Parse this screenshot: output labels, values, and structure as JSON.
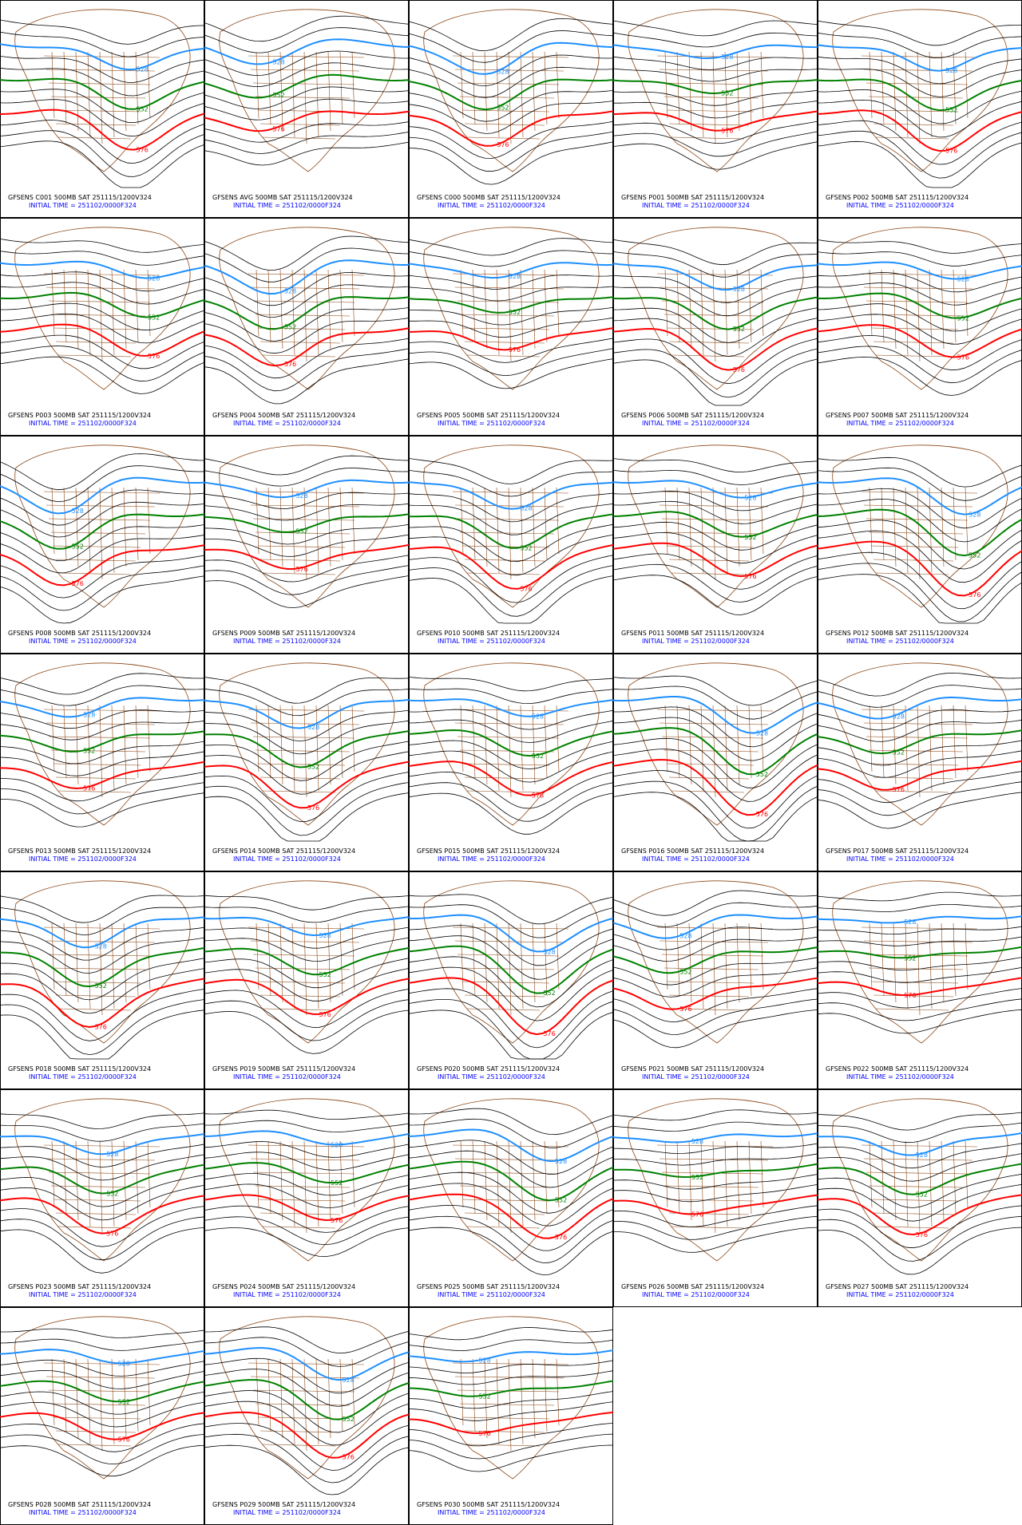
{
  "contours": [
    {
      "label": "528",
      "color": "#1e8fff"
    },
    {
      "label": "552",
      "color": "#008000"
    },
    {
      "label": "576",
      "color": "#ff0000"
    }
  ],
  "panels": [
    {
      "title": "GFSENS C001 500MB SAT 251115/1200V324",
      "init": "INITIAL TIME = 251102/0000F324"
    },
    {
      "title": "GFSENS AVG 500MB SAT 251115/1200V324",
      "init": "INITIAL TIME = 251102/0000F324"
    },
    {
      "title": "GFSENS C000 500MB SAT 251115/1200V324",
      "init": "INITIAL TIME = 251102/0000F324"
    },
    {
      "title": "GFSENS P001 500MB SAT 251115/1200V324",
      "init": "INITIAL TIME = 251102/0000F324"
    },
    {
      "title": "GFSENS P002 500MB SAT 251115/1200V324",
      "init": "INITIAL TIME = 251102/0000F324"
    },
    {
      "title": "GFSENS P003 500MB SAT 251115/1200V324",
      "init": "INITIAL TIME = 251102/0000F324"
    },
    {
      "title": "GFSENS P004 500MB SAT 251115/1200V324",
      "init": "INITIAL TIME = 251102/0000F324"
    },
    {
      "title": "GFSENS P005 500MB SAT 251115/1200V324",
      "init": "INITIAL TIME = 251102/0000F324"
    },
    {
      "title": "GFSENS P006 500MB SAT 251115/1200V324",
      "init": "INITIAL TIME = 251102/0000F324"
    },
    {
      "title": "GFSENS P007 500MB SAT 251115/1200V324",
      "init": "INITIAL TIME = 251102/0000F324"
    },
    {
      "title": "GFSENS P008 500MB SAT 251115/1200V324",
      "init": "INITIAL TIME = 251102/0000F324"
    },
    {
      "title": "GFSENS P009 500MB SAT 251115/1200V324",
      "init": "INITIAL TIME = 251102/0000F324"
    },
    {
      "title": "GFSENS P010 500MB SAT 251115/1200V324",
      "init": "INITIAL TIME = 251102/0000F324"
    },
    {
      "title": "GFSENS P011 500MB SAT 251115/1200V324",
      "init": "INITIAL TIME = 251102/0000F324"
    },
    {
      "title": "GFSENS P012 500MB SAT 251115/1200V324",
      "init": "INITIAL TIME = 251102/0000F324"
    },
    {
      "title": "GFSENS P013 500MB SAT 251115/1200V324",
      "init": "INITIAL TIME = 251102/0000F324"
    },
    {
      "title": "GFSENS P014 500MB SAT 251115/1200V324",
      "init": "INITIAL TIME = 251102/0000F324"
    },
    {
      "title": "GFSENS P015 500MB SAT 251115/1200V324",
      "init": "INITIAL TIME = 251102/0000F324"
    },
    {
      "title": "GFSENS P016 500MB SAT 251115/1200V324",
      "init": "INITIAL TIME = 251102/0000F324"
    },
    {
      "title": "GFSENS P017 500MB SAT 251115/1200V324",
      "init": "INITIAL TIME = 251102/0000F324"
    },
    {
      "title": "GFSENS P018 500MB SAT 251115/1200V324",
      "init": "INITIAL TIME = 251102/0000F324"
    },
    {
      "title": "GFSENS P019 500MB SAT 251115/1200V324",
      "init": "INITIAL TIME = 251102/0000F324"
    },
    {
      "title": "GFSENS P020 500MB SAT 251115/1200V324",
      "init": "INITIAL TIME = 251102/0000F324"
    },
    {
      "title": "GFSENS P021 500MB SAT 251115/1200V324",
      "init": "INITIAL TIME = 251102/0000F324"
    },
    {
      "title": "GFSENS P022 500MB SAT 251115/1200V324",
      "init": "INITIAL TIME = 251102/0000F324"
    },
    {
      "title": "GFSENS P023 500MB SAT 251115/1200V324",
      "init": "INITIAL TIME = 251102/0000F324"
    },
    {
      "title": "GFSENS P024 500MB SAT 251115/1200V324",
      "init": "INITIAL TIME = 251102/0000F324"
    },
    {
      "title": "GFSENS P025 500MB SAT 251115/1200V324",
      "init": "INITIAL TIME = 251102/0000F324"
    },
    {
      "title": "GFSENS P026 500MB SAT 251115/1200V324",
      "init": "INITIAL TIME = 251102/0000F324"
    },
    {
      "title": "GFSENS P027 500MB SAT 251115/1200V324",
      "init": "INITIAL TIME = 251102/0000F324"
    },
    {
      "title": "GFSENS P028 500MB SAT 251115/1200V324",
      "init": "INITIAL TIME = 251102/0000F324"
    },
    {
      "title": "GFSENS P029 500MB SAT 251115/1200V324",
      "init": "INITIAL TIME = 251102/0000F324"
    },
    {
      "title": "GFSENS P030 500MB SAT 251115/1200V324",
      "init": "INITIAL TIME = 251102/0000F324"
    }
  ]
}
